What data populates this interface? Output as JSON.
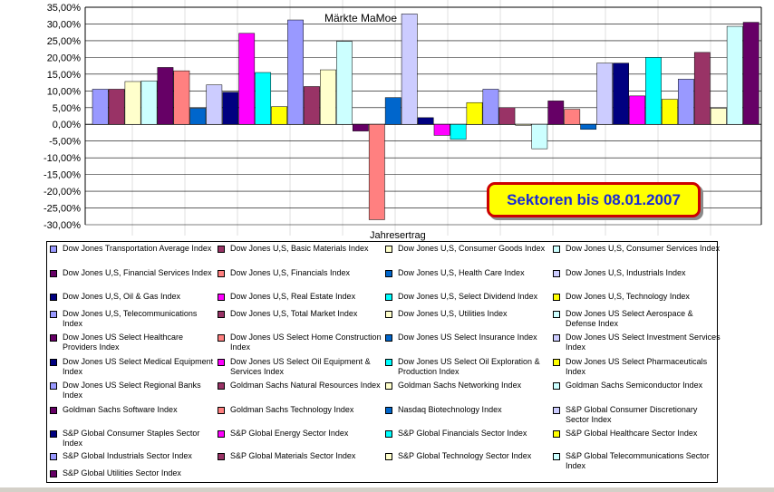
{
  "chart_data": {
    "type": "bar",
    "title": "Märkte MaMoe",
    "xlabel": "Jahresertrag",
    "ylabel": "",
    "ylim": [
      -30,
      35
    ],
    "yticks": [
      "35,00%",
      "30,00%",
      "25,00%",
      "20,00%",
      "15,00%",
      "10,00%",
      "5,00%",
      "0,00%",
      "-5,00%",
      "-10,00%",
      "-15,00%",
      "-20,00%",
      "-25,00%",
      "-30,00%"
    ],
    "grid": true,
    "legend_position": "bottom",
    "categories": [
      "Jahresertrag"
    ],
    "series": [
      {
        "name": "Dow Jones Transportation Average Index",
        "value": 10.5,
        "color": "#9999ff"
      },
      {
        "name": "Dow Jones U,S, Basic Materials Index",
        "value": 10.5,
        "color": "#993366"
      },
      {
        "name": "Dow Jones U,S, Consumer Goods Index",
        "value": 12.8,
        "color": "#ffffcc"
      },
      {
        "name": "Dow Jones U,S, Consumer Services Index",
        "value": 13.0,
        "color": "#ccffff"
      },
      {
        "name": "Dow Jones U,S, Financial Services Index",
        "value": 17.0,
        "color": "#660066"
      },
      {
        "name": "Dow Jones U,S, Financials Index",
        "value": 16.0,
        "color": "#ff8080"
      },
      {
        "name": "Dow Jones U,S, Health Care Index",
        "value": 4.8,
        "color": "#0066cc"
      },
      {
        "name": "Dow Jones U,S, Industrials Index",
        "value": 11.8,
        "color": "#ccccff"
      },
      {
        "name": "Dow Jones U,S, Oil & Gas Index",
        "value": 9.6,
        "color": "#000080"
      },
      {
        "name": "Dow Jones U,S, Real Estate Index",
        "value": 27.2,
        "color": "#ff00ff"
      },
      {
        "name": "Dow Jones U,S, Select Dividend Index",
        "value": 15.5,
        "color": "#00ffff"
      },
      {
        "name": "Dow Jones U,S, Technology Index",
        "value": 5.3,
        "color": "#ffff00"
      },
      {
        "name": "Dow Jones U,S, Telecommunications Index",
        "value": 31.2,
        "color": "#9999ff"
      },
      {
        "name": "Dow Jones U,S, Total Market Index",
        "value": 11.3,
        "color": "#993366"
      },
      {
        "name": "Dow Jones U,S, Utilities Index",
        "value": 16.3,
        "color": "#ffffcc"
      },
      {
        "name": "Dow Jones US Select Aerospace & Defense Index",
        "value": 24.8,
        "color": "#ccffff"
      },
      {
        "name": "Dow Jones US Select Healthcare Providers Index",
        "value": -2.0,
        "color": "#660066"
      },
      {
        "name": "Dow Jones US Select Home Construction Index",
        "value": -28.5,
        "color": "#ff8080"
      },
      {
        "name": "Dow Jones US Select Insurance Index",
        "value": 8.0,
        "color": "#0066cc"
      },
      {
        "name": "Dow Jones US Select Investment Services Index",
        "value": 33.0,
        "color": "#ccccff"
      },
      {
        "name": "Dow Jones US Select Medical Equipment Index",
        "value": 2.0,
        "color": "#000080"
      },
      {
        "name": "Dow Jones US Select Oil Equipment & Services Index",
        "value": -3.3,
        "color": "#ff00ff"
      },
      {
        "name": "Dow Jones US Select Oil Exploration & Production Index",
        "value": -4.5,
        "color": "#00ffff"
      },
      {
        "name": "Dow Jones US Select Pharmaceuticals Index",
        "value": 6.5,
        "color": "#ffff00"
      },
      {
        "name": "Dow Jones US Select Regional Banks Index",
        "value": 10.5,
        "color": "#9999ff"
      },
      {
        "name": "Goldman Sachs Natural Resources Index",
        "value": 5.0,
        "color": "#993366"
      },
      {
        "name": "Goldman Sachs Networking Index",
        "value": -0.3,
        "color": "#ffffcc"
      },
      {
        "name": "Goldman Sachs Semiconductor Index",
        "value": -7.3,
        "color": "#ccffff"
      },
      {
        "name": "Goldman Sachs Software Index",
        "value": 7.0,
        "color": "#660066"
      },
      {
        "name": "Goldman Sachs Technology Index",
        "value": 4.5,
        "color": "#ff8080"
      },
      {
        "name": "Nasdaq Biotechnology Index",
        "value": -1.5,
        "color": "#0066cc"
      },
      {
        "name": "S&P Global Consumer Discretionary Sector Index",
        "value": 18.3,
        "color": "#ccccff"
      },
      {
        "name": "S&P Global Consumer Staples Sector Index",
        "value": 18.3,
        "color": "#000080"
      },
      {
        "name": "S&P Global Energy Sector Index",
        "value": 8.5,
        "color": "#ff00ff"
      },
      {
        "name": "S&P Global Financials Sector Index",
        "value": 20.0,
        "color": "#00ffff"
      },
      {
        "name": "S&P Global Healthcare Sector Index",
        "value": 7.5,
        "color": "#ffff00"
      },
      {
        "name": "S&P Global Industrials Sector Index",
        "value": 13.5,
        "color": "#9999ff"
      },
      {
        "name": "S&P Global Materials Sector Index",
        "value": 21.5,
        "color": "#993366"
      },
      {
        "name": "S&P Global Technology Sector Index",
        "value": 4.8,
        "color": "#ffffcc"
      },
      {
        "name": "S&P Global Telecommunications Sector Index",
        "value": 29.3,
        "color": "#ccffff"
      },
      {
        "name": "S&P Global Utilities Sector Index",
        "value": 30.5,
        "color": "#660066"
      }
    ]
  },
  "legend_labels": [
    "Dow Jones Transportation Average Index",
    "Dow Jones U,S, Basic Materials Index",
    "Dow Jones U,S, Consumer Goods Index",
    "Dow Jones U,S, Consumer Services Index",
    "Dow Jones U,S, Financial Services Index",
    "Dow Jones U,S, Financials Index",
    "Dow Jones U,S, Health Care Index",
    "Dow Jones U,S, Industrials Index",
    "Dow Jones U,S, Oil & Gas Index",
    "Dow Jones U,S, Real Estate Index",
    "Dow Jones U,S, Select Dividend Index",
    "Dow Jones U,S, Technology Index",
    "Dow Jones U,S, Telecommunications Index",
    "Dow Jones U,S, Total Market Index",
    "Dow Jones U,S, Utilities Index",
    "Dow Jones US Select Aerospace & Defense Index",
    "Dow Jones US Select Healthcare Providers Index",
    "Dow Jones US Select Home Construction Index",
    "Dow Jones US Select Insurance Index",
    "Dow Jones US Select Investment Services Index",
    "Dow Jones US Select Medical Equipment Index",
    "Dow Jones US Select Oil Equipment & Services Index",
    "Dow Jones US Select Oil Exploration & Production Index",
    "Dow Jones US Select Pharmaceuticals Index",
    "Dow Jones US Select Regional Banks Index",
    "Goldman Sachs Natural Resources Index",
    "Goldman Sachs Networking Index",
    "Goldman Sachs Semiconductor Index",
    "Goldman Sachs Software Index",
    "Goldman Sachs Technology Index",
    "Nasdaq Biotechnology Index",
    "S&P Global Consumer Discretionary Sector Index",
    "S&P Global Consumer Staples Sector Index",
    "S&P Global Energy Sector Index",
    "S&P Global Financials Sector Index",
    "S&P Global Healthcare Sector Index",
    "S&P Global Industrials Sector Index",
    "S&P Global Materials Sector Index",
    "S&P Global Technology Sector Index",
    "S&P Global Telecommunications Sector Index",
    "S&P Global Utilities Sector Index"
  ],
  "annotation": "Sektoren bis 08.01.2007"
}
